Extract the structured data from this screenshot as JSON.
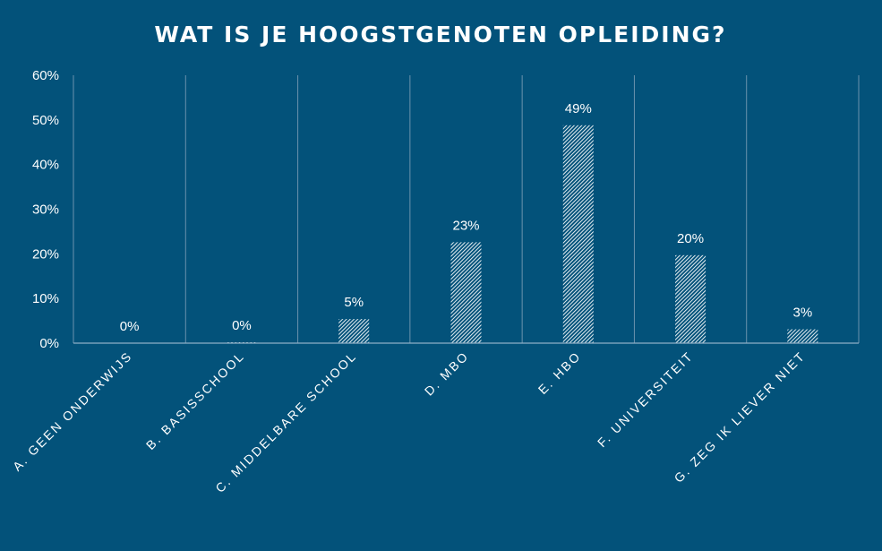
{
  "chart_data": {
    "type": "bar",
    "title": "WAT IS JE HOOGSTGENOTEN OPLEIDING?",
    "categories": [
      "A. GEEN ONDERWIJS",
      "B. BASISSCHOOL",
      "C. MIDDELBARE SCHOOL",
      "D. MBO",
      "E. HBO",
      "F. UNIVERSITEIT",
      "G. ZEG IK LIEVER NIET"
    ],
    "values": [
      0,
      0.2,
      5.4,
      22.6,
      48.8,
      19.7,
      3.1
    ],
    "data_labels": [
      "0%",
      "0%",
      "5%",
      "23%",
      "49%",
      "20%",
      "3%"
    ],
    "yticks": [
      "0%",
      "10%",
      "20%",
      "30%",
      "40%",
      "50%",
      "60%"
    ],
    "ylim": [
      0,
      60
    ],
    "grid": "vertical",
    "legend": "none",
    "xlabel": "",
    "ylabel": "",
    "colors": {
      "background": "#03527a",
      "bar_pattern_fg": "#ffffff",
      "bar_pattern_bg": "#03527a",
      "gridline": "#6b93ad",
      "axis": "#8fb0c6",
      "text": "#ffffff"
    }
  }
}
